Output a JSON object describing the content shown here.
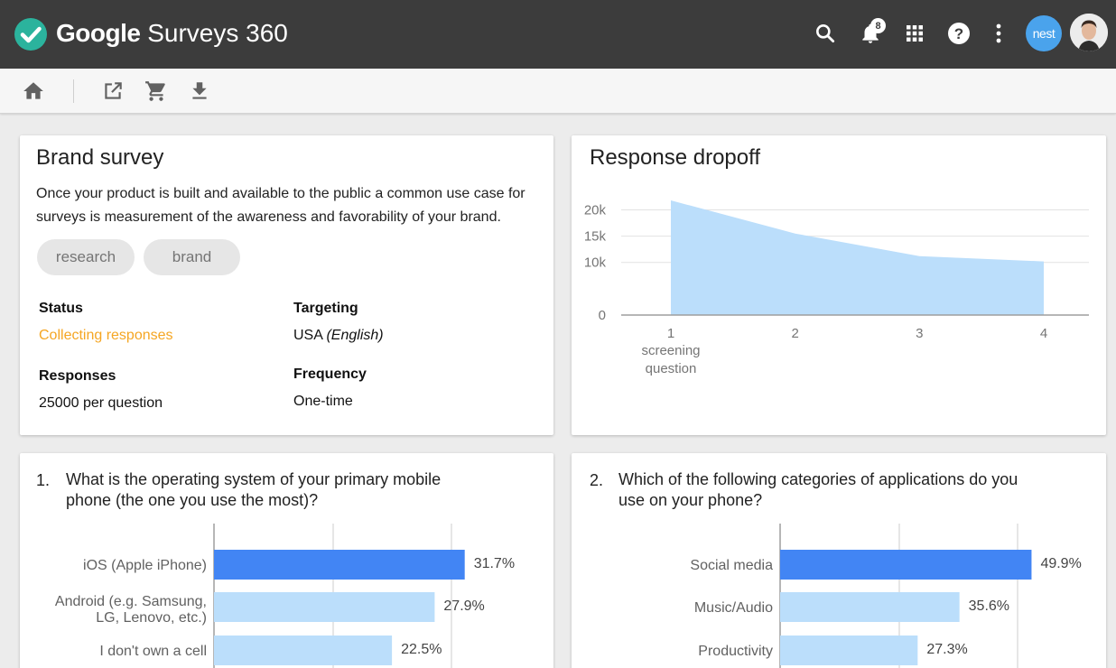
{
  "colors": {
    "appbar": "#3c3c3c",
    "logo": "#2bb39d",
    "accent_bar": "#4285f4",
    "light_bar": "#bbdefb",
    "area_fill": "#bbdefb",
    "status_orange": "#f5a623",
    "nest_blue": "#4aa3ec"
  },
  "header": {
    "brand_bold": "Google",
    "brand_product": " Surveys 360",
    "icons": [
      "search-icon",
      "notifications-icon",
      "apps-icon",
      "help-icon",
      "more-vert-icon"
    ],
    "notification_count": "8",
    "nest_label": "nest"
  },
  "toolbar": {
    "icons": [
      "home-icon",
      "open-in-new-icon",
      "shopping-cart-icon",
      "download-icon"
    ]
  },
  "brand_card": {
    "title": "Brand survey",
    "description": "Once your product is built and available to the public a common use case for surveys is measurement of the awareness and favorability of your brand.",
    "tags": [
      "research",
      "brand"
    ],
    "fields": {
      "status_label": "Status",
      "status_value": "Collecting responses",
      "targeting_label": "Targeting",
      "targeting_value": "USA",
      "targeting_lang": "(English)",
      "responses_label": "Responses",
      "responses_value": "25000 per question",
      "frequency_label": "Frequency",
      "frequency_value": "One-time"
    }
  },
  "dropoff_card": {
    "title": "Response dropoff",
    "chart_data": {
      "type": "area",
      "x": [
        "1",
        "2",
        "3",
        "4"
      ],
      "x_sublabel": [
        "screening",
        "question"
      ],
      "y": [
        21800,
        15500,
        11200,
        10200
      ],
      "y_ticks": [
        "0",
        "10k",
        "15k",
        "20k"
      ],
      "ylim": [
        0,
        23000
      ],
      "grid": true
    }
  },
  "q1_card": {
    "number": "1.",
    "question": "What is the operating system of your primary mobile phone (the one you use the most)?",
    "chart_data": {
      "type": "bar",
      "orientation": "horizontal",
      "categories": [
        [
          "iOS (Apple iPhone)"
        ],
        [
          "Android (e.g. Samsung,",
          "LG, Lenovo, etc.)"
        ],
        [
          "I don't own a cell"
        ]
      ],
      "values": [
        31.7,
        27.9,
        22.5
      ],
      "value_labels": [
        "31.7%",
        "27.9%",
        "22.5%"
      ],
      "xlim": [
        0,
        40
      ]
    }
  },
  "q2_card": {
    "number": "2.",
    "question": "Which of the following categories of applications do you use on your phone?",
    "chart_data": {
      "type": "bar",
      "orientation": "horizontal",
      "categories": [
        [
          "Social media"
        ],
        [
          "Music/Audio"
        ],
        [
          "Productivity"
        ]
      ],
      "values": [
        49.9,
        35.6,
        27.3
      ],
      "value_labels": [
        "49.9%",
        "35.6%",
        "27.3%"
      ],
      "xlim": [
        0,
        60
      ]
    }
  }
}
